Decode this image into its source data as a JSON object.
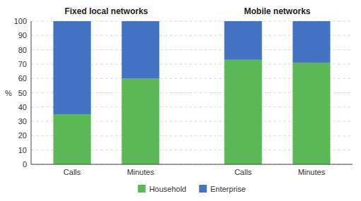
{
  "chart_data": {
    "type": "bar",
    "stacked": true,
    "categories": [
      "Calls",
      "Minutes",
      "Calls",
      "Minutes"
    ],
    "annotations": [
      "Fixed local networks",
      "Mobile networks"
    ],
    "ylabel": "%",
    "series": [
      {
        "name": "Household",
        "color": "#5ab955",
        "values": [
          35,
          60,
          73,
          71
        ]
      },
      {
        "name": "Enterprise",
        "color": "#4472c4",
        "values": [
          65,
          40,
          27,
          29
        ]
      }
    ],
    "ylim": [
      0,
      100
    ],
    "yticks": [
      0,
      10,
      20,
      30,
      40,
      50,
      60,
      70,
      80,
      90,
      100
    ],
    "grid": true,
    "legend": "bottom"
  }
}
